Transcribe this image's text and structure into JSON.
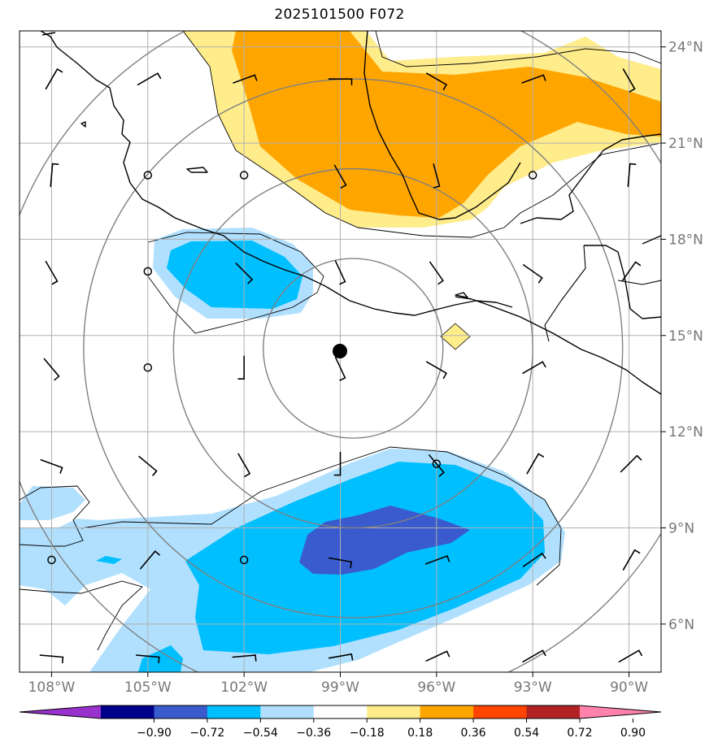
{
  "title": "2025101500 F072",
  "map": {
    "lon_range": [
      -109,
      -89
    ],
    "lat_range": [
      4.5,
      24.5
    ],
    "lon_ticks": [
      -108,
      -105,
      -102,
      -99,
      -96,
      -93,
      -90
    ],
    "lat_ticks": [
      6,
      9,
      12,
      15,
      18,
      21,
      24
    ],
    "lon_tick_labels": [
      "108°W",
      "105°W",
      "102°W",
      "99°W",
      "96°W",
      "93°W",
      "90°W"
    ],
    "lat_tick_labels": [
      "6°N",
      "9°N",
      "12°N",
      "15°N",
      "18°N",
      "21°N",
      "24°N"
    ],
    "grid": true,
    "center_marker": {
      "lon": -98.6,
      "lat": 14.6
    },
    "range_rings_deg": [
      2.8,
      5.6,
      8.4,
      11.2
    ]
  },
  "colorbar": {
    "tick_labels": [
      "−0.90",
      "−0.72",
      "−0.54",
      "−0.36",
      "−0.18",
      "0.18",
      "0.36",
      "0.54",
      "0.72",
      "0.90"
    ],
    "colors": [
      "#9932cc",
      "#00008b",
      "#3a5bcd",
      "#00bfff",
      "#b0e0fe",
      "#ffffff",
      "#ffec8b",
      "#ffa500",
      "#ff4500",
      "#b22222",
      "#ff82ab"
    ],
    "extend": "both"
  },
  "colors": {
    "grid": "#b0b0b0",
    "rings": "#808080",
    "coast": "#000000",
    "contour": "#000000"
  }
}
